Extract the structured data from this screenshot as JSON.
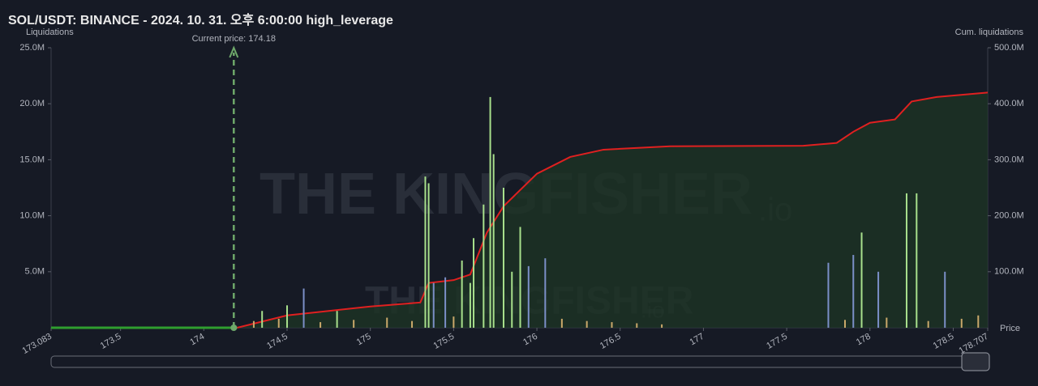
{
  "chart_data": {
    "type": "liquidation-map",
    "title": "SOL/USDT: BINANCE - 2024. 10. 31. 오후 6:00:00 high_leverage",
    "y_label": "Liquidations",
    "y2_label": "Cum. liquidations",
    "x_label": "Price",
    "watermark": "THE KINGFISHER",
    "watermark_suffix": ".io",
    "current_price": {
      "value": 174.18,
      "label": "Current price: 174.18"
    },
    "current_price_color": "#6ea86a",
    "xlim": [
      173.083,
      178.707
    ],
    "xticks": [
      173.083,
      173.5,
      174,
      174.5,
      175,
      175.5,
      176,
      176.5,
      177,
      177.5,
      178,
      178.5,
      178.707
    ],
    "ylim": [
      0,
      25
    ],
    "yticks": [
      {
        "value": 5,
        "label": "5.0M"
      },
      {
        "value": 10,
        "label": "10.0M"
      },
      {
        "value": 15,
        "label": "15.0M"
      },
      {
        "value": 20,
        "label": "20.0M"
      },
      {
        "value": 25,
        "label": "25.0M"
      }
    ],
    "y2lim": [
      0,
      500
    ],
    "y2ticks": [
      {
        "value": 100,
        "label": "100.0M"
      },
      {
        "value": 200,
        "label": "200.0M"
      },
      {
        "value": 300,
        "label": "300.0M"
      },
      {
        "value": 400,
        "label": "400.0M"
      },
      {
        "value": 500,
        "label": "500.0M"
      }
    ],
    "series": [
      {
        "type": "bar",
        "color": "#a8e08c",
        "x": [
          174.35,
          174.5,
          174.8,
          175.33,
          175.35,
          175.55,
          175.6,
          175.62,
          175.68,
          175.72,
          175.74,
          175.8,
          175.85,
          175.9,
          177.95,
          178.22,
          178.28
        ],
        "values": [
          1.5,
          2,
          1.5,
          13.5,
          12.9,
          6,
          4,
          8,
          11,
          20.6,
          15.5,
          12.5,
          5,
          9,
          8.5,
          12,
          12
        ]
      },
      {
        "type": "bar",
        "color": "#7b8fc7",
        "x": [
          174.6,
          175.38,
          175.45,
          175.95,
          176.05,
          177.75,
          177.9,
          178.05,
          178.45
        ],
        "values": [
          3.5,
          4,
          4.5,
          5.5,
          6.2,
          5.8,
          6.5,
          5,
          5
        ]
      },
      {
        "type": "bar",
        "color": "#c9a86a",
        "x": [
          174.3,
          174.45,
          174.7,
          174.9,
          175.1,
          175.25,
          175.5,
          176.15,
          176.3,
          176.45,
          176.6,
          176.75,
          177.85,
          178.1,
          178.35,
          178.55,
          178.65
        ],
        "values": [
          0.6,
          0.8,
          0.5,
          0.7,
          0.9,
          0.6,
          1,
          0.8,
          0.6,
          0.5,
          0.4,
          0.3,
          0.7,
          0.9,
          0.6,
          0.8,
          1.1
        ]
      },
      {
        "type": "line",
        "axis": "y2",
        "color": "#e02020",
        "area_color": "#1d3324",
        "x": [
          174.2,
          174.5,
          175,
          175.3,
          175.35,
          175.5,
          175.6,
          175.7,
          175.8,
          176,
          176.2,
          176.4,
          176.8,
          177.6,
          177.8,
          177.9,
          178,
          178.15,
          178.25,
          178.4,
          178.707
        ],
        "values": [
          0,
          22,
          38,
          45,
          80,
          85,
          95,
          170,
          217,
          275,
          305,
          318,
          324,
          325,
          330,
          350,
          366,
          372,
          404,
          412,
          420
        ]
      },
      {
        "type": "flat",
        "color": "#2f9e2f",
        "x": [
          173.083,
          174.2
        ],
        "values": [
          0,
          0
        ]
      }
    ]
  }
}
